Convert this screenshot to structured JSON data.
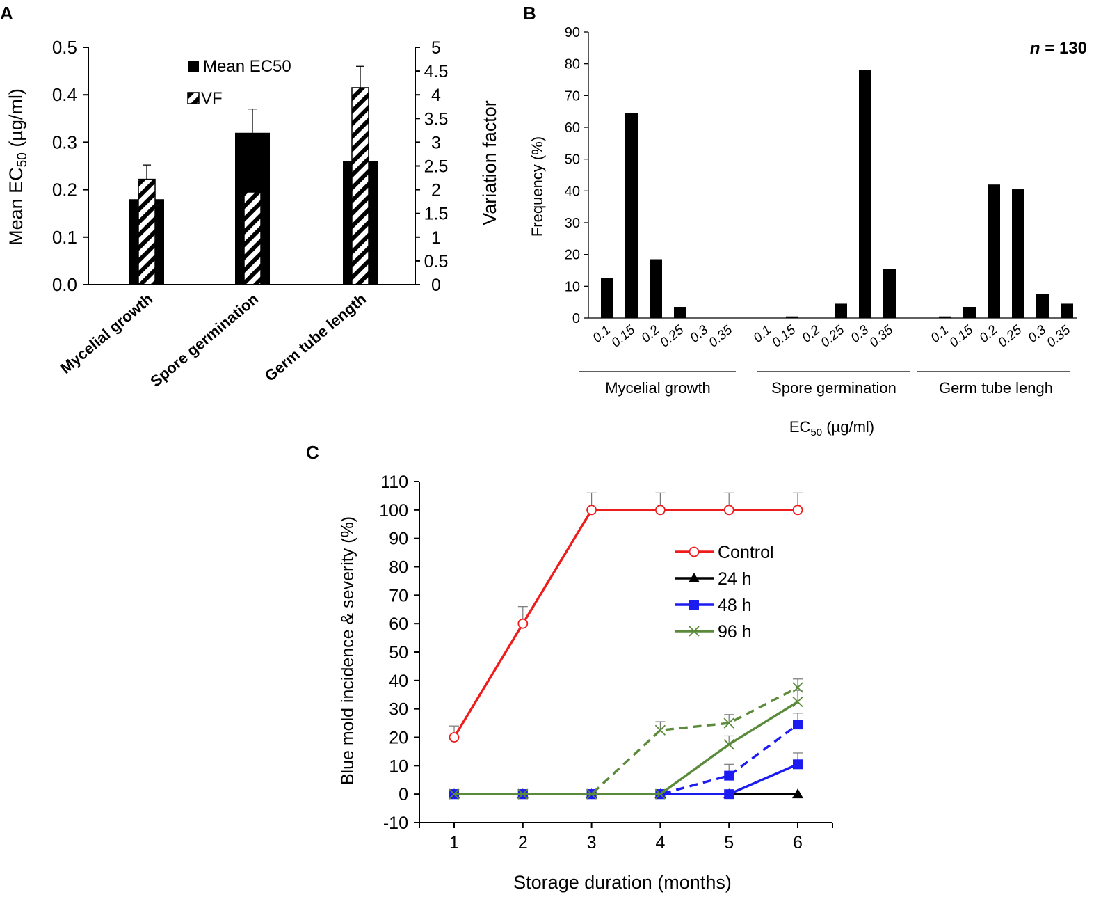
{
  "panels": {
    "a_label": "A",
    "b_label": "B",
    "c_label": "C"
  },
  "chart_data": [
    {
      "id": "A",
      "type": "bar",
      "categories": [
        "Mycelial growth",
        "Spore germination",
        "Germ tube length"
      ],
      "series": [
        {
          "name": "Mean EC50",
          "axis": "left",
          "values": [
            0.18,
            0.32,
            0.26
          ],
          "errors": [
            0,
            0.05,
            0
          ]
        },
        {
          "name": "VF",
          "axis": "right",
          "values": [
            2.22,
            1.95,
            4.15
          ],
          "errors": [
            0.3,
            0,
            0.45
          ]
        }
      ],
      "ylabel_left": "Mean EC",
      "ylabel_left_sub": "50",
      "ylabel_left_unit": " (µg/ml)",
      "ylabel_right": "Variation factor",
      "ylim_left": [
        0,
        0.5
      ],
      "ylim_right": [
        0,
        5
      ],
      "yticks_left": [
        "0.0",
        "0.1",
        "0.2",
        "0.3",
        "0.4",
        "0.5"
      ],
      "yticks_right": [
        "0",
        "0.5",
        "1",
        "1.5",
        "2",
        "2.5",
        "3",
        "3.5",
        "4",
        "4.5",
        "5"
      ],
      "legend": [
        "Mean EC50",
        "VF"
      ]
    },
    {
      "id": "B",
      "type": "bar",
      "annotation_n": "n",
      "annotation_value": " = 130",
      "groups": [
        {
          "name": "Mycelial growth",
          "categories": [
            "0.1",
            "0.15",
            "0.2",
            "0.25",
            "0.3",
            "0.35"
          ],
          "values": [
            12.5,
            64.5,
            18.5,
            3.5,
            0,
            0
          ]
        },
        {
          "name": "Spore germination",
          "categories": [
            "0.1",
            "0.15",
            "0.2",
            "0.25",
            "0.3",
            "0.35"
          ],
          "values": [
            0,
            0.5,
            0,
            4.5,
            78,
            15.5
          ]
        },
        {
          "name": "Germ tube lengh",
          "categories": [
            "0.1",
            "0.15",
            "0.2",
            "0.25",
            "0.3",
            "0.35"
          ],
          "values": [
            0.5,
            3.5,
            42,
            40.5,
            7.5,
            4.5
          ]
        }
      ],
      "ylabel": "Frequency (%)",
      "xlabel": "EC",
      "xlabel_sub": "50",
      "xlabel_unit": " (µg/ml)",
      "ylim": [
        0,
        90
      ],
      "yticks": [
        "0",
        "10",
        "20",
        "30",
        "40",
        "50",
        "60",
        "70",
        "80",
        "90"
      ]
    },
    {
      "id": "C",
      "type": "line",
      "x": [
        1,
        2,
        3,
        4,
        5,
        6
      ],
      "xticks": [
        "1",
        "2",
        "3",
        "4",
        "5",
        "6"
      ],
      "xlabel": "Storage duration (months)",
      "ylabel": "Blue mold incidence & severity (%)",
      "ylim": [
        -10,
        110
      ],
      "yticks": [
        "-10",
        "0",
        "10",
        "20",
        "30",
        "40",
        "50",
        "60",
        "70",
        "80",
        "90",
        "100",
        "110"
      ],
      "series": [
        {
          "name": "Control",
          "color": "#ee1c1c",
          "marker": "circle",
          "style": "solid",
          "values": [
            20,
            60,
            100,
            100,
            100,
            100
          ],
          "errors": [
            4,
            6,
            6,
            6,
            6,
            6
          ]
        },
        {
          "name": "24 h",
          "color": "#000000",
          "marker": "triangle",
          "style": "solid",
          "values": [
            0,
            0,
            0,
            0,
            0,
            0
          ],
          "errors": [
            0,
            0,
            0,
            0,
            0,
            0
          ]
        },
        {
          "name": "48 h",
          "color": "#1c1cf0",
          "marker": "square",
          "style": "solid",
          "values": [
            0,
            0,
            0,
            0,
            0,
            10.5
          ],
          "errors": [
            0,
            0,
            0,
            0,
            0,
            4
          ]
        },
        {
          "name": "48 h (dashed)",
          "color": "#1c1cf0",
          "marker": "square",
          "style": "dashed",
          "values": [
            0,
            0,
            0,
            0,
            6.5,
            24.5
          ],
          "errors": [
            0,
            0,
            0,
            0,
            4,
            4
          ]
        },
        {
          "name": "96 h",
          "color": "#5a8a3a",
          "marker": "x",
          "style": "solid",
          "values": [
            0,
            0,
            0,
            0,
            17.5,
            32.5
          ],
          "errors": [
            0,
            0,
            0,
            0,
            3,
            4
          ]
        },
        {
          "name": "96 h (dashed)",
          "color": "#5a8a3a",
          "marker": "x",
          "style": "dashed",
          "values": [
            0,
            0,
            0,
            22.5,
            25,
            37.5
          ],
          "errors": [
            0,
            0,
            0,
            3,
            3,
            3
          ]
        }
      ],
      "legend": [
        "Control",
        "24 h",
        "48 h",
        "96 h"
      ]
    }
  ]
}
